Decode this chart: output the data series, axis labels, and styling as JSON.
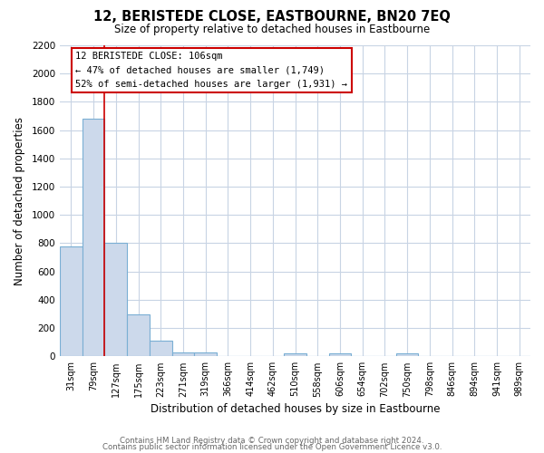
{
  "title": "12, BERISTEDE CLOSE, EASTBOURNE, BN20 7EQ",
  "subtitle": "Size of property relative to detached houses in Eastbourne",
  "xlabel": "Distribution of detached houses by size in Eastbourne",
  "ylabel": "Number of detached properties",
  "categories": [
    "31sqm",
    "79sqm",
    "127sqm",
    "175sqm",
    "223sqm",
    "271sqm",
    "319sqm",
    "366sqm",
    "414sqm",
    "462sqm",
    "510sqm",
    "558sqm",
    "606sqm",
    "654sqm",
    "702sqm",
    "750sqm",
    "798sqm",
    "846sqm",
    "894sqm",
    "941sqm",
    "989sqm"
  ],
  "values": [
    780,
    1680,
    800,
    295,
    110,
    30,
    25,
    0,
    0,
    0,
    20,
    0,
    20,
    0,
    0,
    20,
    0,
    0,
    0,
    0,
    0
  ],
  "bar_color": "#ccd9eb",
  "bar_edge_color": "#7aafd4",
  "ylim": [
    0,
    2200
  ],
  "yticks": [
    0,
    200,
    400,
    600,
    800,
    1000,
    1200,
    1400,
    1600,
    1800,
    2000,
    2200
  ],
  "annotation_box_text": "12 BERISTEDE CLOSE: 106sqm\n← 47% of detached houses are smaller (1,749)\n52% of semi-detached houses are larger (1,931) →",
  "footer_line1": "Contains HM Land Registry data © Crown copyright and database right 2024.",
  "footer_line2": "Contains public sector information licensed under the Open Government Licence v3.0.",
  "background_color": "#ffffff",
  "grid_color": "#c8d4e4"
}
